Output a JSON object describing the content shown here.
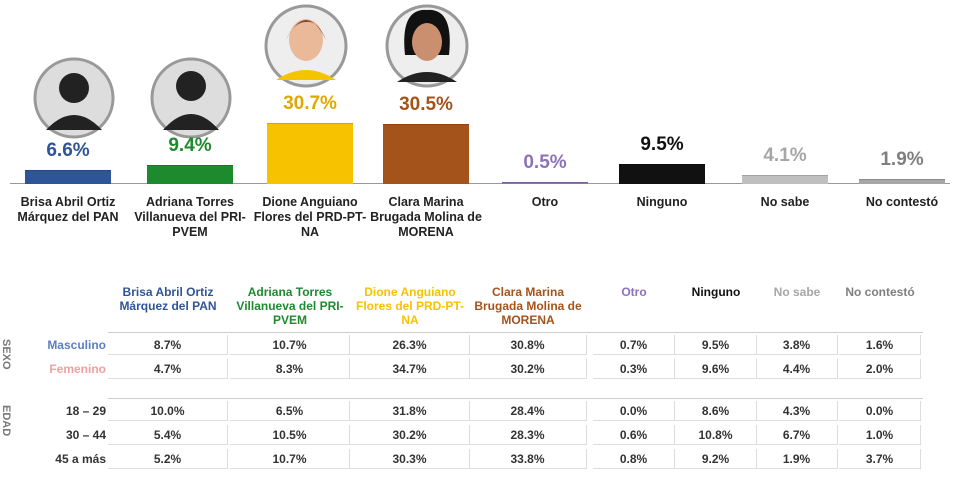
{
  "chart_data": {
    "type": "bar",
    "categories": [
      "Brisa Abril Ortiz Márquez del PAN",
      "Adriana Torres Villanueva del PRI-PVEM",
      "Dione Anguiano Flores del PRD-PT-NA",
      "Clara Marina Brugada Molina de MORENA",
      "Otro",
      "Ninguno",
      "No sabe",
      "No contestó"
    ],
    "values": [
      6.6,
      9.4,
      30.7,
      30.5,
      0.5,
      9.5,
      4.1,
      1.9
    ],
    "value_labels": [
      "6.6%",
      "9.4%",
      "30.7%",
      "30.5%",
      "0.5%",
      "9.5%",
      "4.1%",
      "1.9%"
    ],
    "colors": [
      "#2e5597",
      "#1e8a2e",
      "#f7c200",
      "#a4531a",
      "#8e72b8",
      "#111111",
      "#bfbfbf",
      "#a6a6a6"
    ],
    "label_colors": [
      "#2e5597",
      "#1e8a2e",
      "#e0a800",
      "#a4531a",
      "#8e72b8",
      "#111111",
      "#a6a6a6",
      "#7f7f7f"
    ]
  },
  "table": {
    "columns": [
      "Brisa Abril Ortiz Márquez del PAN",
      "Adriana Torres Villanueva del PRI-PVEM",
      "Dione Anguiano Flores del PRD-PT-NA",
      "Clara Marina Brugada Molina de MORENA",
      "Otro",
      "Ninguno",
      "No sabe",
      "No contestó"
    ],
    "column_colors": [
      "#2e5597",
      "#1e8a2e",
      "#f7c200",
      "#a4531a",
      "#8e72b8",
      "#111111",
      "#a6a6a6",
      "#7f7f7f"
    ],
    "groups": [
      {
        "label": "SEXO",
        "rows": [
          {
            "label": "Masculino",
            "color": "#5b7fc4",
            "cells": [
              "8.7%",
              "10.7%",
              "26.3%",
              "30.8%",
              "0.7%",
              "9.5%",
              "3.8%",
              "1.6%"
            ]
          },
          {
            "label": "Femenino",
            "color": "#f0a0a0",
            "cells": [
              "4.7%",
              "8.3%",
              "34.7%",
              "30.2%",
              "0.3%",
              "9.6%",
              "4.4%",
              "2.0%"
            ]
          }
        ]
      },
      {
        "label": "EDAD",
        "rows": [
          {
            "label": "18 – 29",
            "color": "#333333",
            "cells": [
              "10.0%",
              "6.5%",
              "31.8%",
              "28.4%",
              "0.0%",
              "8.6%",
              "4.3%",
              "0.0%"
            ]
          },
          {
            "label": "30 – 44",
            "color": "#333333",
            "cells": [
              "5.4%",
              "10.5%",
              "30.2%",
              "28.3%",
              "0.6%",
              "10.8%",
              "6.7%",
              "1.0%"
            ]
          },
          {
            "label": "45 a más",
            "color": "#333333",
            "cells": [
              "5.2%",
              "10.7%",
              "30.3%",
              "33.8%",
              "0.8%",
              "9.2%",
              "1.9%",
              "3.7%"
            ]
          }
        ]
      }
    ]
  }
}
